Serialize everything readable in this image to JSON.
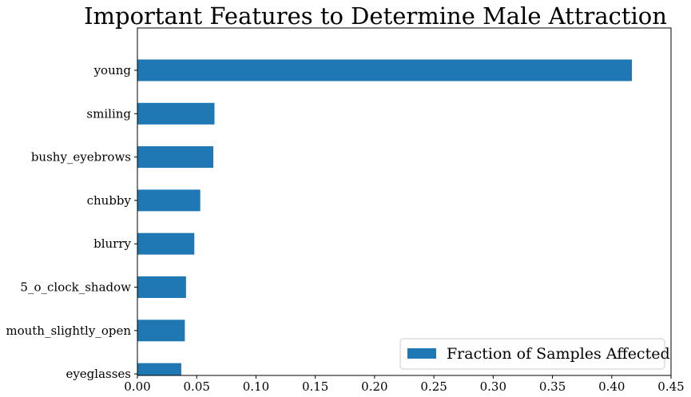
{
  "chart_data": {
    "type": "bar",
    "orientation": "horizontal",
    "title": "Important Features to Determine Male Attraction",
    "categories": [
      "young",
      "smiling",
      "bushy_eyebrows",
      "chubby",
      "blurry",
      "5_o_clock_shadow",
      "mouth_slightly_open",
      "eyeglasses"
    ],
    "series": [
      {
        "name": "Fraction of Samples Affected",
        "values": [
          0.417,
          0.065,
          0.064,
          0.053,
          0.048,
          0.041,
          0.04,
          0.037
        ],
        "color": "#1f77b4"
      }
    ],
    "xlim": [
      0,
      0.45
    ],
    "xticks": [
      "0.00",
      "0.05",
      "0.10",
      "0.15",
      "0.20",
      "0.25",
      "0.30",
      "0.35",
      "0.40",
      "0.45"
    ],
    "xlabel": "",
    "ylabel": "",
    "grid": false,
    "legend": {
      "position": "lower-right",
      "label": "Fraction of Samples Affected"
    }
  }
}
